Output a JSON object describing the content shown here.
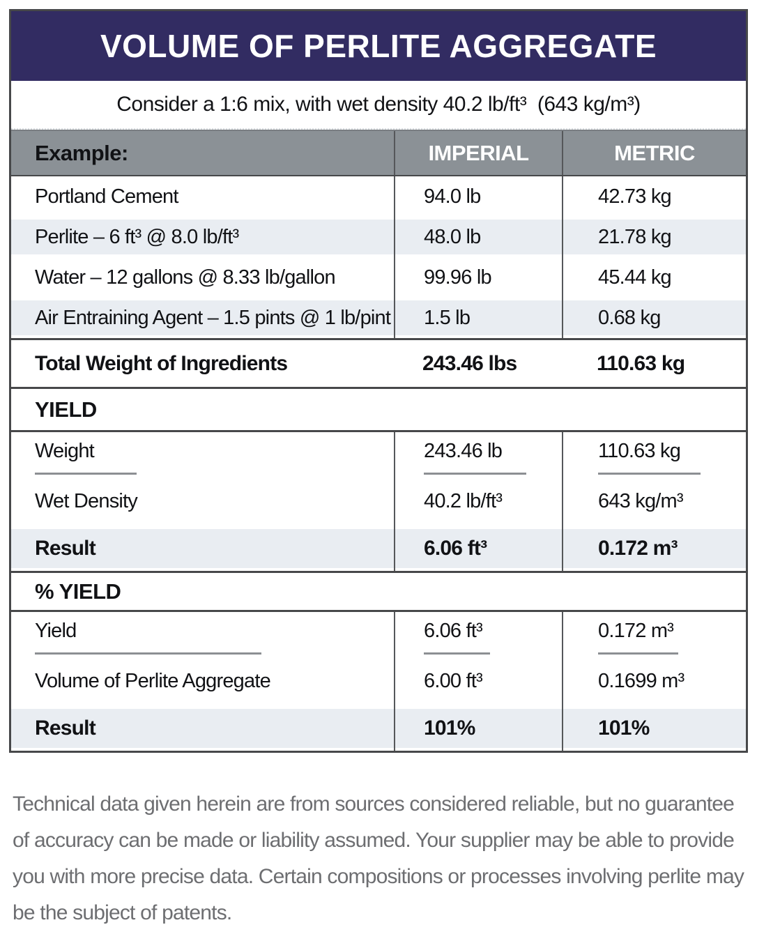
{
  "title": "VOLUME OF PERLITE AGGREGATE",
  "subtitle": "Consider a 1:6 mix, with wet density 40.2 lb/ft³  (643 kg/m³)",
  "header": {
    "example": "Example:",
    "imperial": "IMPERIAL",
    "metric": "METRIC"
  },
  "ingredients": [
    {
      "label": "Portland Cement",
      "imperial": "94.0 lb",
      "metric": "42.73 kg"
    },
    {
      "label": "Perlite – 6 ft³ @ 8.0 lb/ft³",
      "imperial": "48.0 lb",
      "metric": "21.78 kg"
    },
    {
      "label": "Water – 12 gallons @ 8.33 lb/gallon",
      "imperial": "99.96 lb",
      "metric": "45.44 kg"
    },
    {
      "label": "Air Entraining Agent – 1.5 pints @ 1 lb/pint",
      "imperial": "1.5 lb",
      "metric": "0.68 kg"
    }
  ],
  "total": {
    "label": "Total Weight of Ingredients",
    "imperial": "243.46 lbs",
    "metric": "110.63 kg"
  },
  "yield_section": {
    "heading": "YIELD",
    "numerator": {
      "label": "Weight",
      "imperial": "243.46 lb",
      "metric": "110.63 kg"
    },
    "denominator": {
      "label": "Wet Density",
      "imperial": "40.2 lb/ft³",
      "metric": "643 kg/m³"
    },
    "result": {
      "label": "Result",
      "imperial": "6.06 ft³",
      "metric": "0.172 m³"
    }
  },
  "percent_yield_section": {
    "heading": "% YIELD",
    "numerator": {
      "label": "Yield",
      "imperial": "6.06 ft³",
      "metric": "0.172 m³"
    },
    "denominator": {
      "label": "Volume of Perlite Aggregate",
      "imperial": "6.00 ft³",
      "metric": "0.1699 m³"
    },
    "result": {
      "label": "Result",
      "imperial": "101%",
      "metric": "101%"
    }
  },
  "footer": "Technical data given herein are from sources considered reliable, but no guarantee of accuracy can be made or liability assumed. Your supplier may be able to provide you with more precise data. Certain compositions or processes involving perlite may be the subject of patents.",
  "colors": {
    "title_bar": "#322C62",
    "header_row": "#8B9196",
    "shaded_row": "#E9EDF2",
    "border": "#47484A",
    "footer_text": "#6D6E71"
  }
}
